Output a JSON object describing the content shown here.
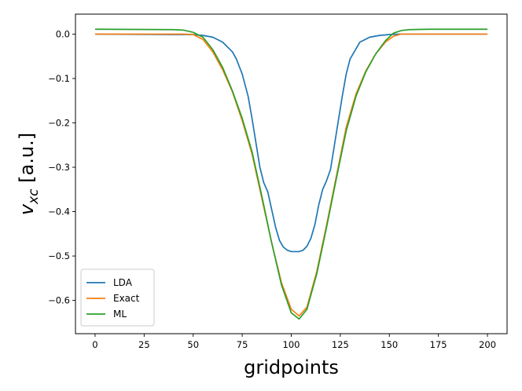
{
  "chart_data": {
    "type": "line",
    "xlabel": "gridpoints",
    "ylabel_main": "v",
    "ylabel_sub": "xc",
    "ylabel_suffix": " [a.u.]",
    "xlim": [
      -10,
      210
    ],
    "ylim": [
      -0.675,
      0.045
    ],
    "xticks": [
      0,
      25,
      50,
      75,
      100,
      125,
      150,
      175,
      200
    ],
    "yticks": [
      0.0,
      -0.1,
      -0.2,
      -0.3,
      -0.4,
      -0.5,
      -0.6
    ],
    "ytick_labels": [
      "0.0",
      "−0.1",
      "−0.2",
      "−0.3",
      "−0.4",
      "−0.5",
      "−0.6"
    ],
    "legend_position": "lower-left",
    "series": [
      {
        "name": "LDA",
        "color": "#1f77b4",
        "x": [
          0,
          40,
          50,
          55,
          60,
          65,
          70,
          72,
          75,
          78,
          80,
          82,
          84,
          86,
          88,
          90,
          92,
          94,
          96,
          98,
          100,
          102,
          104,
          106,
          108,
          110,
          112,
          114,
          116,
          118,
          120,
          122,
          124,
          126,
          128,
          130,
          135,
          140,
          145,
          150,
          155,
          200
        ],
        "y": [
          0.0,
          -0.001,
          -0.001,
          -0.003,
          -0.007,
          -0.018,
          -0.04,
          -0.056,
          -0.09,
          -0.14,
          -0.19,
          -0.245,
          -0.3,
          -0.335,
          -0.355,
          -0.395,
          -0.435,
          -0.465,
          -0.48,
          -0.487,
          -0.49,
          -0.49,
          -0.49,
          -0.487,
          -0.478,
          -0.46,
          -0.43,
          -0.385,
          -0.35,
          -0.33,
          -0.305,
          -0.25,
          -0.195,
          -0.14,
          -0.09,
          -0.056,
          -0.018,
          -0.007,
          -0.003,
          -0.001,
          0.0,
          0.0
        ]
      },
      {
        "name": "Exact",
        "color": "#ff7f0e",
        "x": [
          0,
          45,
          50,
          55,
          60,
          65,
          70,
          75,
          80,
          85,
          90,
          95,
          100,
          104,
          108,
          113,
          118,
          123,
          128,
          133,
          138,
          143,
          148,
          152,
          156,
          160,
          200
        ],
        "y": [
          0.0,
          0.0,
          -0.001,
          -0.012,
          -0.04,
          -0.08,
          -0.13,
          -0.195,
          -0.27,
          -0.37,
          -0.47,
          -0.56,
          -0.62,
          -0.635,
          -0.615,
          -0.535,
          -0.43,
          -0.32,
          -0.21,
          -0.135,
          -0.083,
          -0.045,
          -0.018,
          -0.005,
          0.0,
          0.0,
          0.0
        ]
      },
      {
        "name": "ML",
        "color": "#2ca02c",
        "x": [
          0,
          40,
          45,
          50,
          55,
          60,
          65,
          70,
          75,
          80,
          85,
          90,
          95,
          100,
          104,
          108,
          113,
          118,
          123,
          128,
          133,
          138,
          143,
          148,
          152,
          156,
          160,
          170,
          200
        ],
        "y": [
          0.011,
          0.01,
          0.009,
          0.004,
          -0.007,
          -0.035,
          -0.075,
          -0.128,
          -0.19,
          -0.265,
          -0.365,
          -0.47,
          -0.565,
          -0.628,
          -0.642,
          -0.62,
          -0.54,
          -0.435,
          -0.325,
          -0.218,
          -0.14,
          -0.085,
          -0.045,
          -0.015,
          0.002,
          0.008,
          0.01,
          0.011,
          0.011
        ]
      }
    ]
  }
}
